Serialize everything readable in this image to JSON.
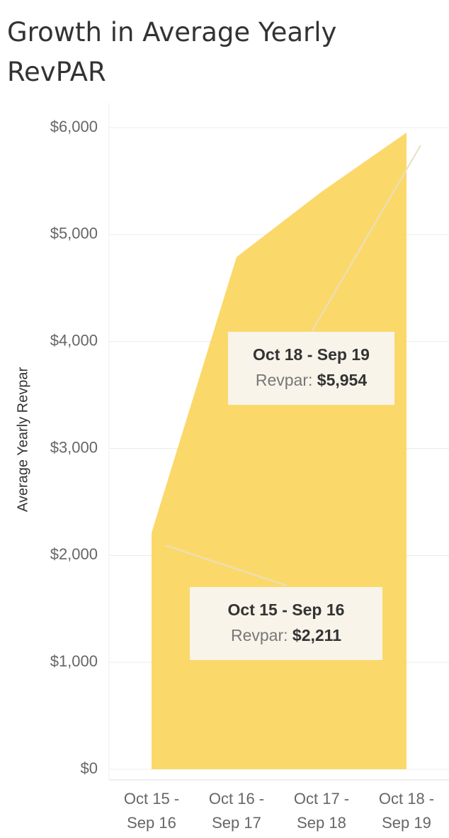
{
  "chart_data": {
    "type": "area",
    "title": "Growth in Average Yearly RevPAR",
    "y_label": "Average Yearly Revpar",
    "categories": [
      "Oct 15 - Sep 16",
      "Oct 16 - Sep 17",
      "Oct 17 - Sep 18",
      "Oct 18 - Sep 19"
    ],
    "values": [
      2211,
      4790,
      5400,
      5954
    ],
    "value_labels": [
      "$2,211",
      null,
      null,
      "$5,954"
    ],
    "annotation_label": "Revpar:",
    "color": "#fbd45a",
    "ylim": [
      0,
      6000
    ],
    "yticks": [
      {
        "value": 0,
        "label": "$0"
      },
      {
        "value": 1000,
        "label": "$1,000"
      },
      {
        "value": 2000,
        "label": "$2,000"
      },
      {
        "value": 3000,
        "label": "$3,000"
      },
      {
        "value": 4000,
        "label": "$4,000"
      },
      {
        "value": 5000,
        "label": "$5,000"
      },
      {
        "value": 6000,
        "label": "$6,000"
      }
    ],
    "grid": true
  }
}
